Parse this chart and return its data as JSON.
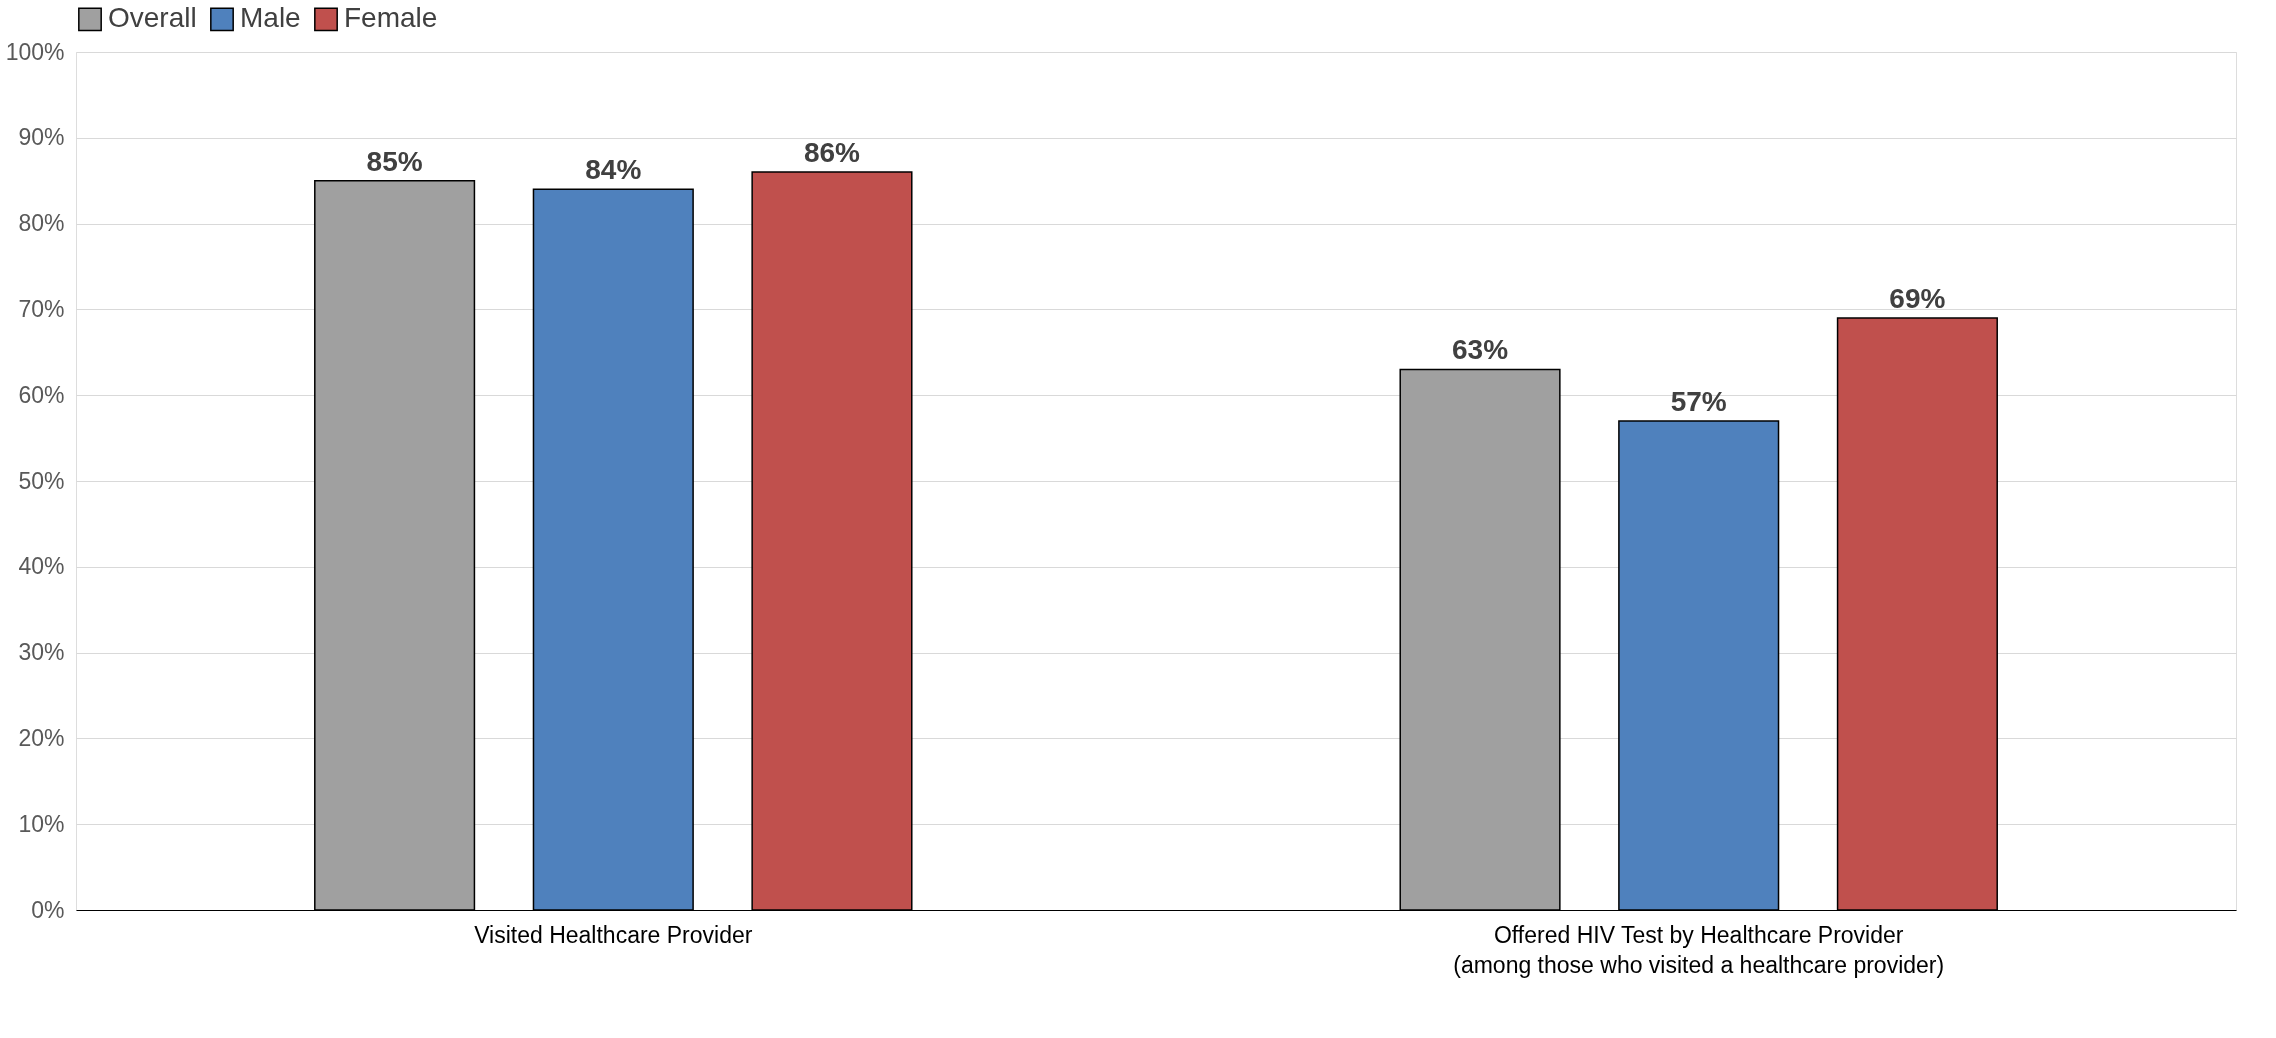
{
  "chart_data": {
    "type": "bar",
    "categories": [
      "Visited Healthcare Provider",
      "Offered HIV Test by Healthcare Provider\n(among those who visited a healthcare provider)"
    ],
    "series": [
      {
        "name": "Overall",
        "color": "#a0a0a0",
        "values": [
          85,
          63
        ],
        "value_labels": [
          "85%",
          "63%"
        ]
      },
      {
        "name": "Male",
        "color": "#4f81bd",
        "values": [
          84,
          57
        ],
        "value_labels": [
          "84%",
          "57%"
        ]
      },
      {
        "name": "Female",
        "color": "#c0504d",
        "values": [
          86,
          69
        ],
        "value_labels": [
          "86%",
          "69%"
        ]
      }
    ],
    "ylim": [
      0,
      100
    ],
    "yticks": [
      {
        "value": 0,
        "label": "0%"
      },
      {
        "value": 10,
        "label": "10%"
      },
      {
        "value": 20,
        "label": "20%"
      },
      {
        "value": 30,
        "label": "30%"
      },
      {
        "value": 40,
        "label": "40%"
      },
      {
        "value": 50,
        "label": "50%"
      },
      {
        "value": 60,
        "label": "60%"
      },
      {
        "value": 70,
        "label": "70%"
      },
      {
        "value": 80,
        "label": "80%"
      },
      {
        "value": 90,
        "label": "90%"
      },
      {
        "value": 100,
        "label": "100%"
      }
    ],
    "grid": "y",
    "legend": "top"
  }
}
